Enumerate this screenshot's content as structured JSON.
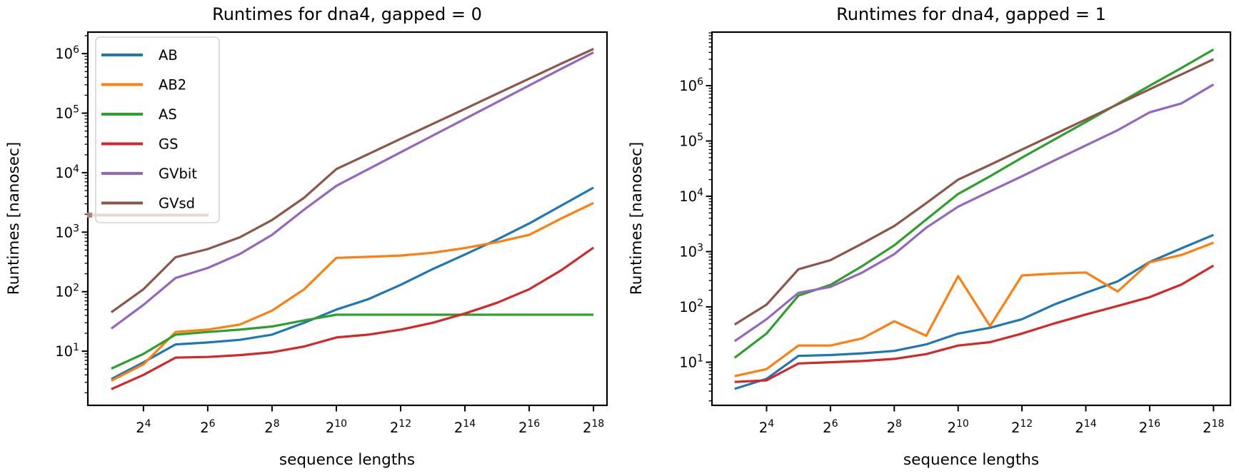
{
  "figure": {
    "background": "#ffffff",
    "text_color": "#000000"
  },
  "chart_data": [
    {
      "type": "line",
      "title": "Runtimes for dna4, gapped = 0",
      "xlabel": "sequence lengths",
      "ylabel": "Runtimes [nanosec]",
      "grid": false,
      "x_scale": "log2",
      "y_scale": "log10",
      "x_tick_base": "2",
      "x_tick_exponents": [
        4,
        6,
        8,
        10,
        12,
        14,
        16,
        18
      ],
      "y_tick_base": "10",
      "y_tick_exponents": [
        1,
        2,
        3,
        4,
        5,
        6
      ],
      "x_exponents": [
        3,
        4,
        5,
        6,
        7,
        8,
        9,
        10,
        11,
        12,
        13,
        14,
        15,
        16,
        17,
        18
      ],
      "xlim_exponent": [
        2.27,
        18.42
      ],
      "ylim": [
        1.23,
        2300000
      ],
      "legend_position": "upper left",
      "series": [
        {
          "name": "AB",
          "color": "#1f77b4",
          "values": [
            3.4,
            6.5,
            13,
            14,
            15.5,
            19,
            30,
            50,
            75,
            130,
            240,
            420,
            750,
            1400,
            2800,
            5600
          ]
        },
        {
          "name": "AB2",
          "color": "#ff7f0e",
          "values": [
            3.2,
            6,
            21,
            23,
            28,
            48,
            110,
            370,
            385,
            405,
            450,
            540,
            680,
            900,
            1700,
            3100
          ]
        },
        {
          "name": "AS",
          "color": "#2ca02c",
          "values": [
            5.1,
            9,
            19,
            21,
            23,
            26,
            33,
            41,
            41,
            41,
            41,
            41,
            41,
            41,
            41,
            41
          ]
        },
        {
          "name": "GS",
          "color": "#d62728",
          "values": [
            2.3,
            4,
            7.8,
            8,
            8.6,
            9.6,
            12,
            17,
            19,
            23,
            30,
            43,
            65,
            110,
            230,
            550
          ]
        },
        {
          "name": "GVbit",
          "color": "#9467bd",
          "values": [
            24,
            60,
            170,
            250,
            430,
            900,
            2400,
            6000,
            11500,
            22000,
            42000,
            80000,
            153000,
            292000,
            558000,
            1050000
          ]
        },
        {
          "name": "GVsd",
          "color": "#8c564b",
          "values": [
            45,
            110,
            380,
            520,
            820,
            1600,
            3800,
            11500,
            20600,
            37000,
            66000,
            118000,
            212000,
            380000,
            680000,
            1200000
          ]
        }
      ],
      "stray_mark": {
        "line_color": "#e8d6d1",
        "cap_color": "#b1857c"
      }
    },
    {
      "type": "line",
      "title": "Runtimes for dna4, gapped = 1",
      "xlabel": "sequence lengths",
      "ylabel": "Runtimes [nanosec]",
      "grid": false,
      "x_scale": "log2",
      "y_scale": "log10",
      "x_tick_base": "2",
      "x_tick_exponents": [
        4,
        6,
        8,
        10,
        12,
        14,
        16,
        18
      ],
      "y_tick_base": "10",
      "y_tick_exponents": [
        1,
        2,
        3,
        4,
        5,
        6
      ],
      "x_exponents": [
        3,
        4,
        5,
        6,
        7,
        8,
        9,
        10,
        11,
        12,
        13,
        14,
        15,
        16,
        17,
        18
      ],
      "xlim_exponent": [
        2.29,
        18.53
      ],
      "ylim": [
        1.66,
        9300000
      ],
      "legend_position": null,
      "series": [
        {
          "name": "AB",
          "color": "#1f77b4",
          "values": [
            3.3,
            5,
            13,
            13.5,
            14.5,
            16,
            21,
            33,
            42,
            60,
            110,
            180,
            290,
            650,
            1150,
            2000
          ]
        },
        {
          "name": "AB2",
          "color": "#ff7f0e",
          "values": [
            5.6,
            7.5,
            20,
            20,
            27,
            55,
            30,
            360,
            45,
            370,
            400,
            420,
            190,
            640,
            870,
            1450
          ]
        },
        {
          "name": "AS",
          "color": "#2ca02c",
          "values": [
            12,
            33,
            160,
            250,
            550,
            1300,
            3800,
            11000,
            23000,
            50000,
            105000,
            220000,
            470000,
            1000000,
            2100000,
            4500000
          ]
        },
        {
          "name": "GS",
          "color": "#d62728",
          "values": [
            4.4,
            4.7,
            9.5,
            10,
            10.5,
            11.5,
            14,
            20,
            23,
            33,
            50,
            73,
            104,
            150,
            255,
            560
          ]
        },
        {
          "name": "GVbit",
          "color": "#9467bd",
          "values": [
            24,
            60,
            180,
            230,
            420,
            900,
            2700,
            6500,
            12300,
            23000,
            44000,
            83000,
            157000,
            330000,
            480000,
            1050000
          ]
        },
        {
          "name": "GVsd",
          "color": "#8c564b",
          "values": [
            48,
            110,
            480,
            700,
            1400,
            2900,
            7500,
            20000,
            37000,
            70000,
            131000,
            245000,
            460000,
            860000,
            1600000,
            3000000
          ]
        }
      ]
    }
  ]
}
